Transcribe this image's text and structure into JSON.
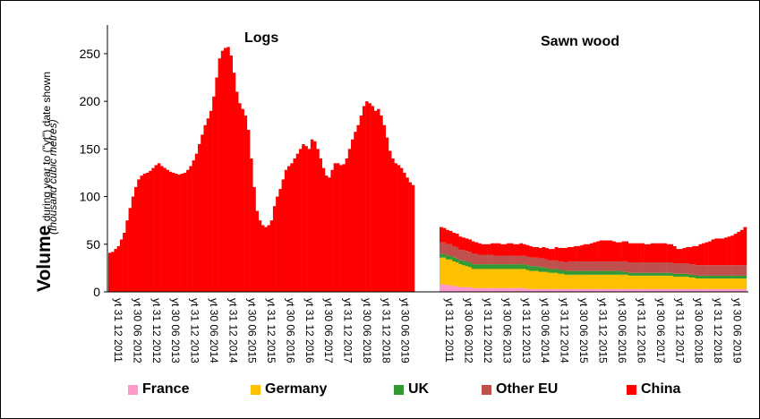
{
  "chart_data": {
    "type": "bar",
    "stacked": true,
    "ylabel_main": "Volume",
    "ylabel_detail": "during year to (\"yt\") date shown",
    "ylabel_units": "(thousand cubic metres)",
    "ylim": [
      0,
      280
    ],
    "yticks": [
      0,
      50,
      100,
      150,
      200,
      250
    ],
    "grid": false,
    "legend_position": "bottom",
    "legend": [
      {
        "name": "France",
        "color": "#ff99cc"
      },
      {
        "name": "Germany",
        "color": "#ffc000"
      },
      {
        "name": "UK",
        "color": "#339933"
      },
      {
        "name": "Other EU",
        "color": "#c0504d"
      },
      {
        "name": "China",
        "color": "#ff0000"
      }
    ],
    "x_tick_labels": [
      "yt 31 12 2011",
      "yt 30 06 2012",
      "yt 31 12 2012",
      "yt 30 06 2013",
      "yt 31 12 2013",
      "yt 30 06 2014",
      "yt 31 12 2014",
      "yt 30 06 2015",
      "yt 31 12 2015",
      "yt 30 06 2016",
      "yt 31 12 2016",
      "yt 30 06 2017",
      "yt 31 12 2017",
      "yt 30 06 2018",
      "yt 31 12 2018",
      "yt 30 06 2019"
    ],
    "panels": [
      {
        "title": "Logs",
        "x_start": "12/2011",
        "x_end": "11/2019",
        "series": [
          {
            "name": "China",
            "values": [
              41,
              42,
              45,
              48,
              55,
              62,
              75,
              88,
              100,
              110,
              118,
              122,
              124,
              125,
              127,
              130,
              133,
              135,
              132,
              130,
              128,
              126,
              125,
              124,
              123,
              124,
              125,
              128,
              132,
              138,
              145,
              155,
              165,
              175,
              182,
              190,
              205,
              225,
              245,
              253,
              256,
              257,
              248,
              230,
              210,
              198,
              192,
              185,
              170,
              140,
              110,
              85,
              75,
              70,
              68,
              70,
              75,
              90,
              100,
              108,
              118,
              128,
              132,
              135,
              140,
              145,
              150,
              155,
              153,
              150,
              160,
              158,
              150,
              140,
              130,
              122,
              120,
              128,
              135,
              135,
              133,
              134,
              140,
              150,
              160,
              168,
              175,
              185,
              195,
              200,
              198,
              195,
              190,
              192,
              185,
              175,
              162,
              148,
              140,
              135,
              133,
              130,
              125,
              120,
              115,
              112
            ]
          }
        ]
      },
      {
        "title": "Sawn wood",
        "x_start": "12/2011",
        "x_end": "11/2019",
        "series": [
          {
            "name": "France",
            "values": [
              8,
              8,
              7,
              7,
              6,
              6,
              5,
              5,
              5,
              5,
              4,
              4,
              4,
              4,
              4,
              4,
              4,
              4,
              4,
              4,
              4,
              4,
              4,
              4,
              4,
              4,
              4,
              3,
              3,
              3,
              3,
              3,
              3,
              3,
              3,
              3,
              3,
              3,
              3,
              3,
              3,
              3,
              3,
              3,
              3,
              3,
              3,
              3,
              3,
              3,
              3,
              3,
              3,
              3,
              3,
              3,
              3,
              3,
              3,
              3,
              3,
              3,
              3,
              3,
              3,
              3,
              3,
              3,
              3,
              3,
              3,
              3,
              3,
              3,
              3,
              3,
              3,
              3,
              3,
              3,
              3,
              3,
              3,
              3,
              3,
              3,
              3,
              3,
              3,
              3,
              3,
              3,
              3,
              3,
              3,
              3
            ]
          },
          {
            "name": "Germany",
            "values": [
              28,
              28,
              27,
              27,
              26,
              25,
              24,
              23,
              22,
              21,
              20,
              20,
              20,
              20,
              20,
              20,
              20,
              20,
              20,
              20,
              20,
              20,
              20,
              20,
              20,
              20,
              20,
              20,
              19,
              19,
              19,
              18,
              18,
              18,
              17,
              17,
              17,
              16,
              16,
              15,
              15,
              15,
              15,
              15,
              15,
              15,
              15,
              15,
              15,
              15,
              15,
              15,
              15,
              15,
              15,
              15,
              15,
              15,
              15,
              14,
              14,
              14,
              14,
              14,
              14,
              14,
              14,
              14,
              14,
              14,
              14,
              14,
              14,
              13,
              13,
              13,
              13,
              13,
              12,
              12,
              11,
              11,
              11,
              11,
              11,
              11,
              11,
              11,
              11,
              11,
              11,
              11,
              11,
              11,
              11,
              11
            ]
          },
          {
            "name": "UK",
            "values": [
              4,
              4,
              4,
              4,
              4,
              4,
              4,
              5,
              5,
              5,
              5,
              5,
              5,
              5,
              5,
              5,
              5,
              5,
              5,
              5,
              5,
              5,
              5,
              5,
              5,
              5,
              5,
              5,
              5,
              5,
              5,
              5,
              5,
              4,
              4,
              4,
              4,
              4,
              4,
              4,
              4,
              4,
              4,
              4,
              4,
              4,
              4,
              4,
              4,
              4,
              4,
              4,
              4,
              4,
              4,
              4,
              4,
              3,
              3,
              3,
              3,
              3,
              3,
              3,
              3,
              3,
              3,
              3,
              3,
              3,
              3,
              3,
              3,
              3,
              3,
              3,
              3,
              3,
              3,
              3,
              3,
              3,
              3,
              3,
              3,
              3,
              3,
              3,
              3,
              3,
              3,
              3,
              3,
              3,
              3,
              3
            ]
          },
          {
            "name": "Other EU",
            "values": [
              12,
              12,
              12,
              12,
              12,
              12,
              11,
              11,
              11,
              11,
              11,
              11,
              10,
              10,
              10,
              10,
              10,
              9,
              9,
              9,
              9,
              9,
              9,
              9,
              9,
              9,
              9,
              9,
              9,
              9,
              9,
              9,
              9,
              9,
              9,
              9,
              9,
              9,
              9,
              9,
              10,
              10,
              10,
              10,
              10,
              10,
              10,
              10,
              10,
              10,
              10,
              10,
              10,
              10,
              10,
              10,
              10,
              11,
              11,
              11,
              11,
              11,
              11,
              11,
              11,
              11,
              11,
              11,
              11,
              11,
              11,
              11,
              11,
              11,
              11,
              11,
              11,
              11,
              11,
              11,
              11,
              11,
              11,
              11,
              11,
              11,
              11,
              11,
              11,
              11,
              11,
              11,
              11,
              11,
              11,
              11
            ]
          },
          {
            "name": "China",
            "values": [
              16,
              15,
              15,
              14,
              14,
              14,
              14,
              13,
              13,
              13,
              13,
              12,
              12,
              11,
              11,
              11,
              12,
              13,
              13,
              12,
              12,
              13,
              13,
              12,
              12,
              13,
              12,
              12,
              12,
              11,
              11,
              11,
              12,
              12,
              12,
              12,
              14,
              14,
              14,
              15,
              15,
              15,
              16,
              16,
              17,
              18,
              18,
              19,
              20,
              21,
              22,
              22,
              22,
              22,
              21,
              20,
              20,
              21,
              21,
              20,
              20,
              20,
              20,
              20,
              19,
              19,
              20,
              20,
              20,
              20,
              20,
              19,
              19,
              18,
              15,
              15,
              16,
              17,
              18,
              19,
              20,
              22,
              23,
              24,
              25,
              27,
              28,
              28,
              28,
              29,
              30,
              31,
              33,
              35,
              37,
              40
            ]
          }
        ]
      }
    ]
  }
}
